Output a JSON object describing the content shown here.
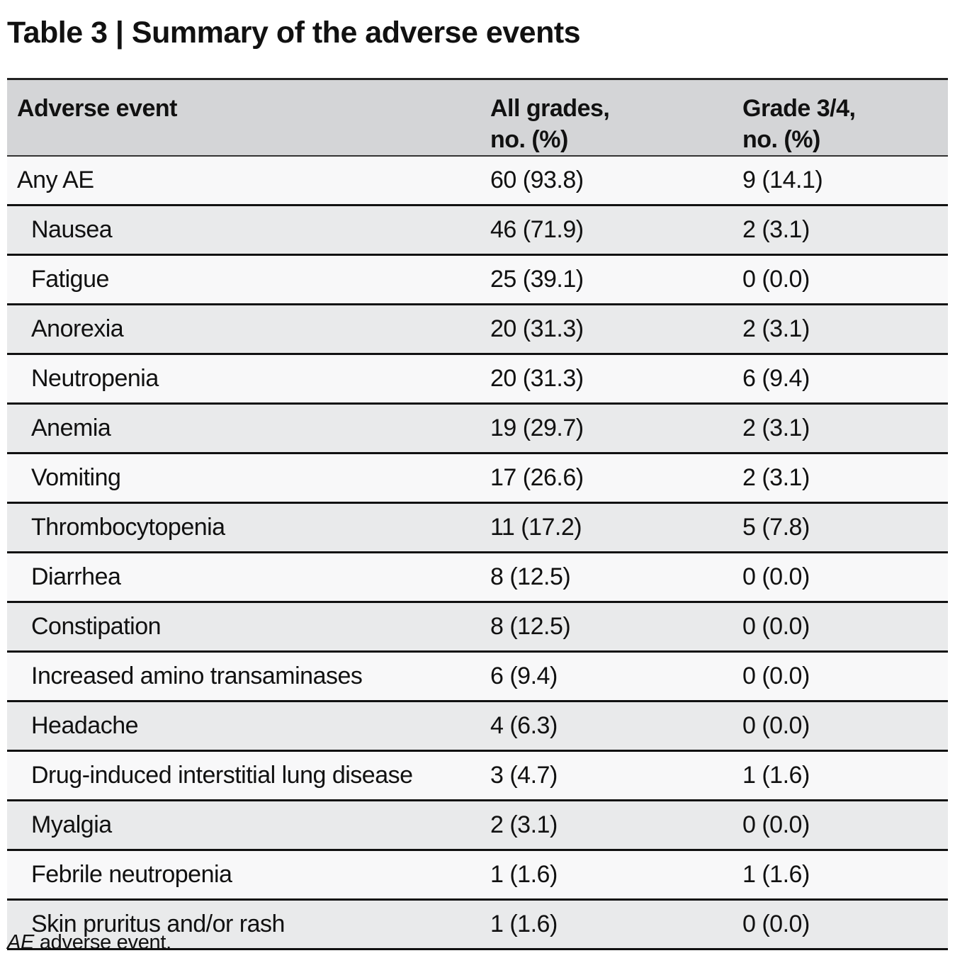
{
  "title": "Table 3 | Summary of the adverse events",
  "table": {
    "headers": [
      [
        "Adverse event"
      ],
      [
        "All grades,",
        "no. (%)"
      ],
      [
        "Grade 3/4,",
        "no. (%)"
      ]
    ],
    "rows": [
      {
        "event": "Any AE",
        "all": "60 (93.8)",
        "g34": "9 (14.1)",
        "indent": false
      },
      {
        "event": "Nausea",
        "all": "46 (71.9)",
        "g34": "2 (3.1)",
        "indent": true
      },
      {
        "event": "Fatigue",
        "all": "25 (39.1)",
        "g34": "0 (0.0)",
        "indent": true
      },
      {
        "event": "Anorexia",
        "all": "20 (31.3)",
        "g34": "2 (3.1)",
        "indent": true
      },
      {
        "event": "Neutropenia",
        "all": "20 (31.3)",
        "g34": "6 (9.4)",
        "indent": true
      },
      {
        "event": "Anemia",
        "all": "19 (29.7)",
        "g34": "2 (3.1)",
        "indent": true
      },
      {
        "event": "Vomiting",
        "all": "17 (26.6)",
        "g34": "2 (3.1)",
        "indent": true
      },
      {
        "event": "Thrombocytopenia",
        "all": "11 (17.2)",
        "g34": "5 (7.8)",
        "indent": true
      },
      {
        "event": "Diarrhea",
        "all": "8 (12.5)",
        "g34": "0 (0.0)",
        "indent": true
      },
      {
        "event": "Constipation",
        "all": "8 (12.5)",
        "g34": "0 (0.0)",
        "indent": true
      },
      {
        "event": "Increased amino transaminases",
        "all": "6 (9.4)",
        "g34": "0 (0.0)",
        "indent": true
      },
      {
        "event": "Headache",
        "all": "4 (6.3)",
        "g34": "0 (0.0)",
        "indent": true
      },
      {
        "event": "Drug-induced interstitial lung disease",
        "all": "3 (4.7)",
        "g34": "1 (1.6)",
        "indent": true
      },
      {
        "event": "Myalgia",
        "all": "2 (3.1)",
        "g34": "0 (0.0)",
        "indent": true
      },
      {
        "event": "Febrile neutropenia",
        "all": "1 (1.6)",
        "g34": "1 (1.6)",
        "indent": true
      },
      {
        "event": "Skin pruritus and/or rash",
        "all": "1 (1.6)",
        "g34": "0 (0.0)",
        "indent": true
      }
    ]
  },
  "footnote": {
    "abbr": "AE",
    "text": " adverse event."
  },
  "colors": {
    "header_bg": "#d4d5d7",
    "row_light": "#f8f8f9",
    "row_dark": "#e9eaeb",
    "rule": "#111111"
  }
}
